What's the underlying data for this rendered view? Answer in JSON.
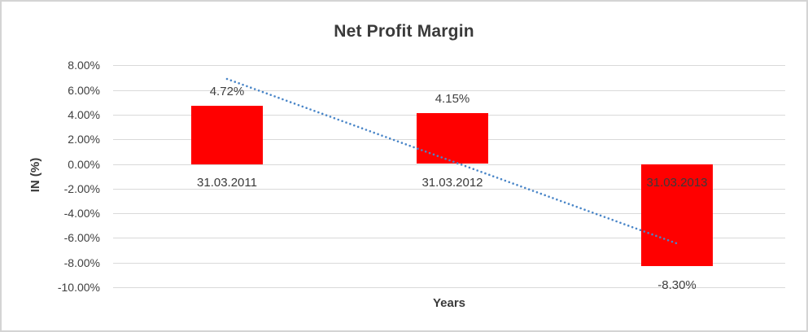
{
  "chart_data": {
    "type": "bar",
    "title": "Net Profit Margin",
    "xlabel": "Years",
    "ylabel": "IN (%)",
    "categories": [
      "31.03.2011",
      "31.03.2012",
      "31.03.2013"
    ],
    "values": [
      4.72,
      4.15,
      -8.3
    ],
    "value_labels": [
      "4.72%",
      "4.15%",
      "-8.30%"
    ],
    "ylim": [
      -10,
      8
    ],
    "ytick_step": 2,
    "ytick_labels": [
      "8.00%",
      "6.00%",
      "4.00%",
      "2.00%",
      "0.00%",
      "-2.00%",
      "-4.00%",
      "-6.00%",
      "-8.00%",
      "-10.00%"
    ],
    "ytick_values": [
      8,
      6,
      4,
      2,
      0,
      -2,
      -4,
      -6,
      -8,
      -10
    ],
    "grid": true,
    "legend": "none",
    "colors": {
      "bar": "#FF0000",
      "trendline": "#4A86C8",
      "gridline": "#D9D9D9",
      "text": "#3F3F3F",
      "frame_border": "#D4D4D4"
    },
    "trendline": {
      "style": "dotted",
      "from_category": "31.03.2011",
      "to_category": "31.03.2013",
      "start_value": 6.9,
      "end_value": -6.45
    }
  }
}
